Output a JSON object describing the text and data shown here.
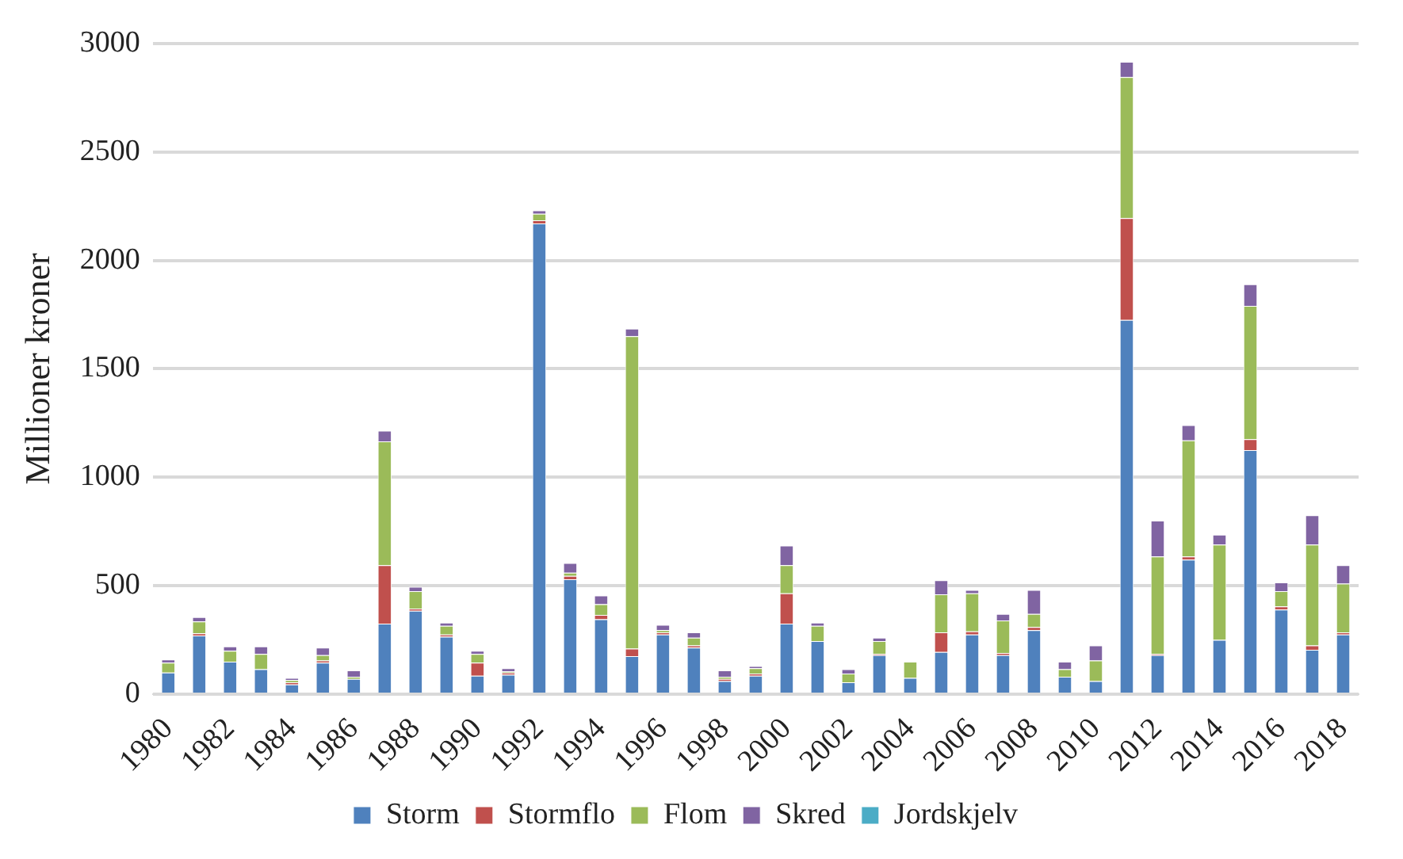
{
  "chart_data": {
    "type": "bar",
    "stacked": true,
    "ylabel": "Millioner kroner",
    "categories": [
      "1980",
      null,
      "1982",
      null,
      "1984",
      null,
      "1986",
      null,
      "1988",
      null,
      "1990",
      null,
      "1992",
      null,
      "1994",
      null,
      "1996",
      null,
      "1998",
      null,
      "2000",
      null,
      "2002",
      null,
      "2004",
      null,
      "2006",
      null,
      "2008",
      null,
      "2010",
      null,
      "2012",
      null,
      "2014",
      null,
      "2016",
      null,
      "2018"
    ],
    "series": [
      {
        "name": "Storm",
        "color": "#4f81bd",
        "values": [
          100,
          270,
          150,
          115,
          45,
          145,
          70,
          325,
          385,
          265,
          85,
          90,
          2170,
          530,
          345,
          175,
          275,
          215,
          60,
          85,
          325,
          245,
          55,
          180,
          75,
          195,
          275,
          180,
          295,
          80,
          60,
          1725,
          180,
          620,
          250,
          1125,
          390,
          205,
          275
        ]
      },
      {
        "name": "Stormflo",
        "color": "#c0504d",
        "values": [
          0,
          10,
          0,
          0,
          10,
          10,
          0,
          270,
          10,
          10,
          60,
          10,
          15,
          15,
          20,
          35,
          10,
          10,
          10,
          10,
          140,
          0,
          0,
          5,
          0,
          90,
          15,
          10,
          15,
          0,
          0,
          470,
          5,
          15,
          0,
          50,
          15,
          20,
          10
        ]
      },
      {
        "name": "Flom",
        "color": "#9bbb59",
        "values": [
          45,
          55,
          50,
          70,
          10,
          25,
          10,
          570,
          80,
          40,
          40,
          5,
          30,
          15,
          50,
          1440,
          10,
          35,
          10,
          25,
          130,
          70,
          40,
          60,
          75,
          175,
          175,
          150,
          60,
          35,
          95,
          650,
          450,
          535,
          440,
          615,
          70,
          465,
          225
        ]
      },
      {
        "name": "Skred",
        "color": "#8064a2",
        "values": [
          15,
          20,
          20,
          35,
          10,
          35,
          30,
          50,
          20,
          15,
          15,
          15,
          15,
          45,
          40,
          35,
          25,
          25,
          30,
          10,
          90,
          15,
          20,
          15,
          0,
          65,
          15,
          30,
          110,
          35,
          70,
          70,
          165,
          70,
          45,
          100,
          40,
          135,
          85
        ]
      },
      {
        "name": "Jordskjelv",
        "color": "#4bacc6",
        "values": [
          0,
          0,
          0,
          0,
          0,
          0,
          0,
          0,
          0,
          0,
          0,
          0,
          0,
          0,
          0,
          0,
          0,
          0,
          0,
          0,
          0,
          0,
          0,
          0,
          0,
          0,
          0,
          0,
          0,
          0,
          0,
          0,
          0,
          0,
          0,
          0,
          0,
          0,
          0
        ]
      }
    ],
    "ylim": [
      0,
      3000
    ],
    "yticks": [
      0,
      500,
      1000,
      1500,
      2000,
      2500,
      3000
    ],
    "grid": "y",
    "legend": "bottom"
  }
}
